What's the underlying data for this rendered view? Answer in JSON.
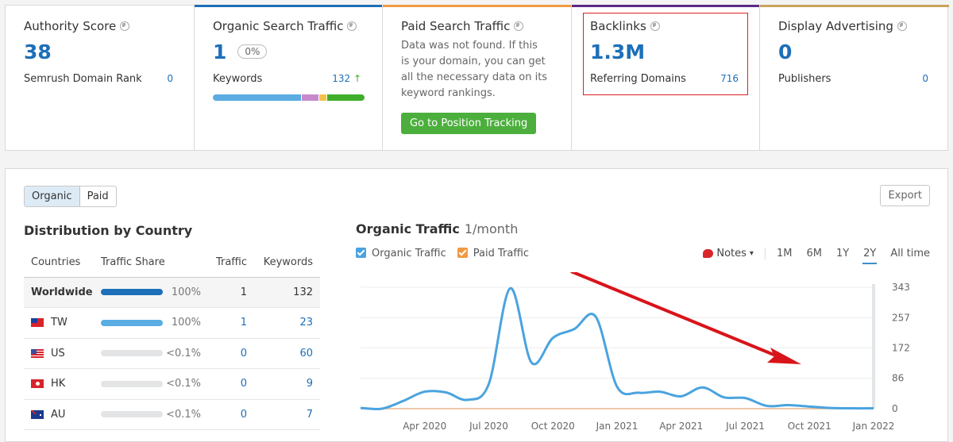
{
  "cards": [
    {
      "title": "Authority Score",
      "value": "38",
      "row_label": "Semrush Domain Rank",
      "row_value": "0",
      "accent": "#ffffff"
    },
    {
      "title": "Organic Search Traffic",
      "value": "1",
      "change": "0%",
      "row_label": "Keywords",
      "row_value": "132",
      "row_arrow": "↑",
      "accent": "#1d6fb8",
      "segments": [
        {
          "color": "#5aace2",
          "pct": 59
        },
        {
          "color": "#c889cc",
          "pct": 11
        },
        {
          "color": "#f2c24a",
          "pct": 5
        },
        {
          "color": "#3fae2a",
          "pct": 25
        }
      ]
    },
    {
      "title": "Paid Search Traffic",
      "message": "Data was not found. If this is your domain, you can get all the necessary data on its keyword rankings.",
      "button": "Go to Position Tracking",
      "accent": "#f09a43"
    },
    {
      "title": "Backlinks",
      "value": "1.3M",
      "row_label": "Referring Domains",
      "row_value": "716",
      "accent": "#5b2a86"
    },
    {
      "title": "Display Advertising",
      "value": "0",
      "row_label": "Publishers",
      "row_value": "0",
      "accent": "#c7a35b"
    }
  ],
  "panel": {
    "toggle": {
      "organic": "Organic",
      "paid": "Paid"
    },
    "export_label": "Export",
    "distribution": {
      "title": "Distribution by Country",
      "headers": [
        "Countries",
        "Traffic Share",
        "Traffic",
        "Keywords"
      ],
      "rows": [
        {
          "country": "Worldwide",
          "share": "100%",
          "fill": 100,
          "bar_color": "#1d6fb8",
          "traffic": "1",
          "keywords": "132"
        },
        {
          "country": "TW",
          "share": "100%",
          "fill": 100,
          "bar_color": "#5aace2",
          "traffic": "1",
          "keywords": "23"
        },
        {
          "country": "US",
          "share": "<0.1%",
          "fill": 100,
          "bar_color": "#e2e4e6",
          "traffic": "0",
          "keywords": "60"
        },
        {
          "country": "HK",
          "share": "<0.1%",
          "fill": 100,
          "bar_color": "#e2e4e6",
          "traffic": "0",
          "keywords": "9"
        },
        {
          "country": "AU",
          "share": "<0.1%",
          "fill": 100,
          "bar_color": "#e2e4e6",
          "traffic": "0",
          "keywords": "7"
        }
      ]
    },
    "chart": {
      "title": "Organic Traffic",
      "unit": "1/month",
      "legend": [
        {
          "label": "Organic Traffic",
          "color": "#4aa3df"
        },
        {
          "label": "Paid Traffic",
          "color": "#f09a43"
        }
      ],
      "notes_label": "Notes",
      "ranges": [
        "1M",
        "6M",
        "1Y",
        "2Y",
        "All time"
      ],
      "selected_range": "2Y"
    }
  },
  "chart_data": {
    "type": "line",
    "title": "Organic Traffic 1/month",
    "x": [
      "Jan 2020",
      "Feb 2020",
      "Mar 2020",
      "Apr 2020",
      "May 2020",
      "Jun 2020",
      "Jul 2020",
      "Aug 2020",
      "Sep 2020",
      "Oct 2020",
      "Nov 2020",
      "Dec 2020",
      "Jan 2021",
      "Feb 2021",
      "Mar 2021",
      "Apr 2021",
      "May 2021",
      "Jun 2021",
      "Jul 2021",
      "Aug 2021",
      "Sep 2021",
      "Oct 2021",
      "Nov 2021",
      "Dec 2021",
      "Jan 2022"
    ],
    "x_tick_labels": [
      "Apr 2020",
      "Jul 2020",
      "Oct 2020",
      "Jan 2021",
      "Apr 2021",
      "Jul 2021",
      "Oct 2021",
      "Jan 2022"
    ],
    "series": [
      {
        "name": "Organic Traffic",
        "color": "#4aa3df",
        "values": [
          2,
          0,
          22,
          48,
          46,
          25,
          70,
          340,
          130,
          200,
          225,
          260,
          62,
          45,
          48,
          35,
          60,
          32,
          30,
          8,
          10,
          6,
          2,
          1,
          1
        ]
      },
      {
        "name": "Paid Traffic",
        "color": "#f09a43",
        "values": [
          0,
          0,
          0,
          0,
          0,
          0,
          0,
          0,
          0,
          0,
          0,
          0,
          0,
          0,
          0,
          0,
          0,
          0,
          0,
          0,
          0,
          0,
          0,
          0,
          0
        ]
      }
    ],
    "y_ticks": [
      0,
      86,
      172,
      257,
      343
    ],
    "ylim": [
      0,
      343
    ],
    "y_axis_position": "right",
    "grid": true,
    "annotation": "red arrow pointing down-right indicating declining trend"
  }
}
